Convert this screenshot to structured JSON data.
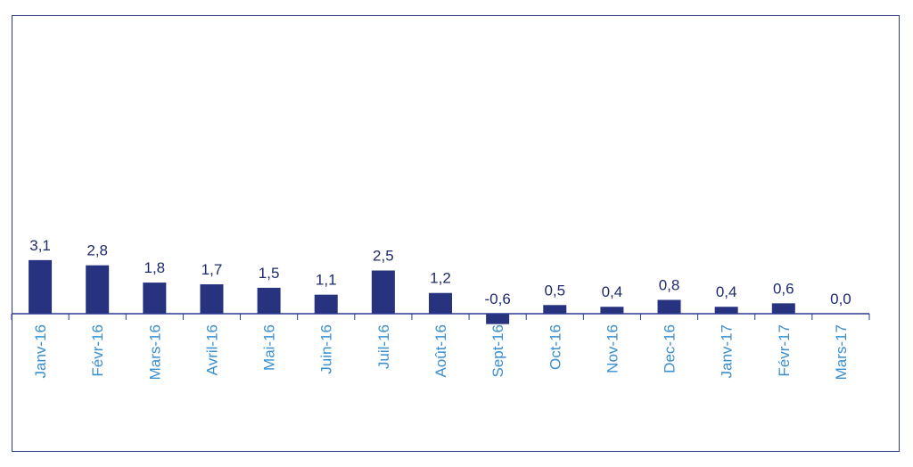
{
  "chart_data": {
    "type": "bar",
    "categories": [
      "Janv-16",
      "Févr-16",
      "Mars-16",
      "Avril-16",
      "Mai-16",
      "Juin-16",
      "Juil-16",
      "Août-16",
      "Sept-16",
      "Oct-16",
      "Nov-16",
      "Dec-16",
      "Janv-17",
      "Févr-17",
      "Mars-17"
    ],
    "values": [
      3.1,
      2.8,
      1.8,
      1.7,
      1.5,
      1.1,
      2.5,
      1.2,
      -0.6,
      0.5,
      0.4,
      0.8,
      0.4,
      0.6,
      0.0
    ],
    "value_labels": [
      "3,1",
      "2,8",
      "1,8",
      "1,7",
      "1,5",
      "1,1",
      "2,5",
      "1,2",
      "-0,6",
      "0,5",
      "0,4",
      "0,8",
      "0,4",
      "0,6",
      "0,0"
    ],
    "title": "",
    "xlabel": "",
    "ylabel": "",
    "ylim": [
      -0.8,
      17.8
    ],
    "grid": false,
    "legend": "none",
    "colors": {
      "bar": "#27337f",
      "value_label": "#1f2a6b",
      "tick_label": "#3a8fd0",
      "axis": "#2b3a8c",
      "frame": "#2b3a8c"
    }
  }
}
